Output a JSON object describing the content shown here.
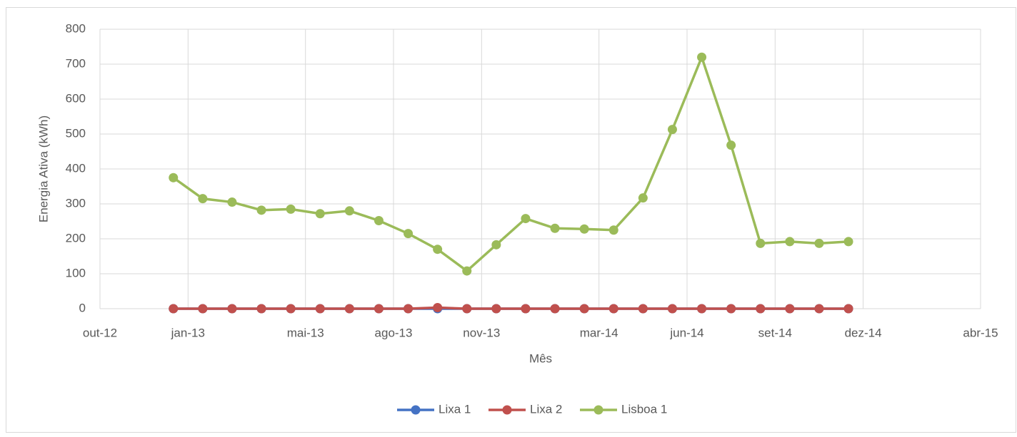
{
  "chart_data": {
    "type": "line",
    "xlabel": "Mês",
    "ylabel": "Energia Ativa (kWh)",
    "x": [
      "2012-12",
      "2013-01",
      "2013-02",
      "2013-03",
      "2013-04",
      "2013-05",
      "2013-06",
      "2013-07",
      "2013-08",
      "2013-09",
      "2013-10",
      "2013-11",
      "2013-12",
      "2014-01",
      "2014-02",
      "2014-03",
      "2014-04",
      "2014-05",
      "2014-06",
      "2014-07",
      "2014-08",
      "2014-09",
      "2014-10",
      "2014-11"
    ],
    "series": [
      {
        "name": "Lixa 1",
        "color": "#4472c4",
        "values": [
          0,
          0,
          0,
          0,
          0,
          0,
          0,
          0,
          0,
          0,
          0,
          0,
          0,
          0,
          0,
          0,
          0,
          0,
          0,
          0,
          0,
          0,
          0,
          0
        ]
      },
      {
        "name": "Lixa 2",
        "color": "#c0504d",
        "values": [
          0,
          0,
          0,
          0,
          0,
          0,
          0,
          0,
          0,
          3,
          0,
          0,
          0,
          0,
          0,
          0,
          0,
          0,
          0,
          0,
          0,
          0,
          0,
          0
        ]
      },
      {
        "name": "Lisboa 1",
        "color": "#9bbb59",
        "values": [
          375,
          315,
          305,
          282,
          285,
          272,
          280,
          252,
          215,
          170,
          108,
          183,
          258,
          230,
          228,
          225,
          317,
          513,
          720,
          468,
          187,
          192,
          187,
          192
        ]
      }
    ],
    "xlim": [
      "2012-10",
      "2015-04"
    ],
    "xticks": [
      {
        "value": "2012-10",
        "label": "out-12"
      },
      {
        "value": "2013-01",
        "label": "jan-13"
      },
      {
        "value": "2013-05",
        "label": "mai-13"
      },
      {
        "value": "2013-08",
        "label": "ago-13"
      },
      {
        "value": "2013-11",
        "label": "nov-13"
      },
      {
        "value": "2014-03",
        "label": "mar-14"
      },
      {
        "value": "2014-06",
        "label": "jun-14"
      },
      {
        "value": "2014-09",
        "label": "set-14"
      },
      {
        "value": "2014-12",
        "label": "dez-14"
      },
      {
        "value": "2015-04",
        "label": "abr-15"
      }
    ],
    "ylim": [
      0,
      800
    ],
    "yticks": [
      0,
      100,
      200,
      300,
      400,
      500,
      600,
      700,
      800
    ],
    "grid": true,
    "legend": "bottom"
  }
}
